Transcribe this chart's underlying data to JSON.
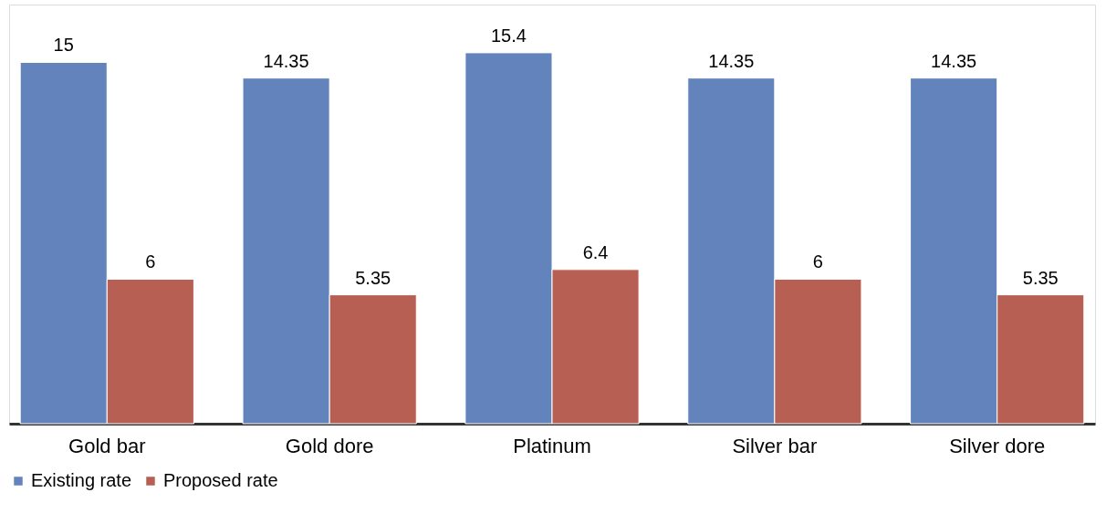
{
  "chart_data": {
    "type": "bar",
    "categories": [
      "Gold bar",
      "Gold dore",
      "Platinum",
      "Silver bar",
      "Silver dore"
    ],
    "series": [
      {
        "name": "Existing rate",
        "color": "#6383bc",
        "values": [
          15,
          14.35,
          15.4,
          14.35,
          14.35
        ]
      },
      {
        "name": "Proposed rate",
        "color": "#b85f53",
        "values": [
          6,
          5.35,
          6.4,
          6,
          5.35
        ]
      }
    ],
    "data_labels": true,
    "legend": "bottom",
    "grid": false
  }
}
